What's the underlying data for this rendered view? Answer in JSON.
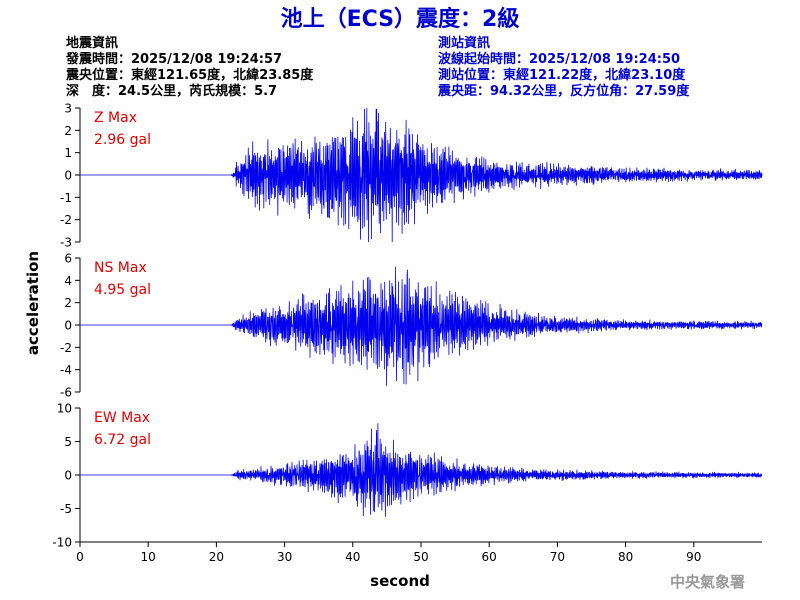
{
  "title": "池上（ECS）震度：2級",
  "event_info": {
    "heading": "地震資訊",
    "time": "發震時間：2025/12/08 19:24:57",
    "location": "震央位置：東經121.65度，北緯23.85度",
    "depth_mag": "深　度：24.5公里，芮氏規模：5.7"
  },
  "station_info": {
    "heading": "測站資訊",
    "wave_start": "波線起始時間：2025/12/08 19:24:50",
    "location": "測站位置：東經121.22度，北緯23.10度",
    "distance": "震央距：94.32公里，反方位角：27.59度"
  },
  "watermark": "中央氣象署",
  "colors": {
    "title": "#0000cc",
    "station_info": "#0000cc",
    "max_label": "#e00000",
    "trace": "#0000ee",
    "axis": "#000000"
  },
  "chart_data": [
    {
      "type": "line",
      "component": "Z",
      "max_label": "Z Max",
      "max_value": "2.96 gal",
      "ylim": [
        -3,
        3
      ],
      "yticks": [
        -3,
        -2,
        -1,
        0,
        1,
        2,
        3
      ],
      "xlim": [
        0,
        100
      ],
      "onset_s": 22.2,
      "peak_s": 43.5,
      "envelope": [
        [
          0,
          0
        ],
        [
          22.2,
          0
        ],
        [
          23,
          0.6
        ],
        [
          25,
          1.3
        ],
        [
          30,
          1.5
        ],
        [
          35,
          1.7
        ],
        [
          38,
          2.0
        ],
        [
          42,
          2.6
        ],
        [
          44,
          2.96
        ],
        [
          46,
          2.4
        ],
        [
          48,
          2.1
        ],
        [
          51,
          1.5
        ],
        [
          55,
          1.0
        ],
        [
          60,
          0.7
        ],
        [
          65,
          0.55
        ],
        [
          70,
          0.45
        ],
        [
          80,
          0.3
        ],
        [
          90,
          0.25
        ],
        [
          100,
          0.2
        ]
      ]
    },
    {
      "type": "line",
      "component": "NS",
      "max_label": "NS Max",
      "max_value": "4.95 gal",
      "ylim": [
        -6,
        6
      ],
      "yticks": [
        -6,
        -4,
        -2,
        0,
        2,
        4,
        6
      ],
      "xlim": [
        0,
        100
      ],
      "onset_s": 22.2,
      "peak_s": 48.0,
      "envelope": [
        [
          0,
          0
        ],
        [
          22.2,
          0
        ],
        [
          23,
          0.6
        ],
        [
          26,
          1.2
        ],
        [
          30,
          2.0
        ],
        [
          35,
          2.8
        ],
        [
          40,
          3.6
        ],
        [
          44,
          4.2
        ],
        [
          48,
          4.95
        ],
        [
          50,
          3.8
        ],
        [
          54,
          2.8
        ],
        [
          60,
          1.8
        ],
        [
          65,
          1.1
        ],
        [
          70,
          0.7
        ],
        [
          80,
          0.45
        ],
        [
          90,
          0.35
        ],
        [
          100,
          0.3
        ]
      ]
    },
    {
      "type": "line",
      "component": "EW",
      "max_label": "EW Max",
      "max_value": "6.72 gal",
      "ylim": [
        -10,
        10
      ],
      "yticks": [
        -10,
        -5,
        0,
        5,
        10
      ],
      "xlim": [
        0,
        100
      ],
      "onset_s": 22.2,
      "peak_s": 43.5,
      "envelope": [
        [
          0,
          0
        ],
        [
          22.2,
          0
        ],
        [
          23,
          0.6
        ],
        [
          26,
          1.0
        ],
        [
          30,
          1.5
        ],
        [
          35,
          2.5
        ],
        [
          40,
          4.0
        ],
        [
          43.5,
          6.72
        ],
        [
          46,
          4.5
        ],
        [
          50,
          3.0
        ],
        [
          55,
          2.0
        ],
        [
          60,
          1.3
        ],
        [
          65,
          0.9
        ],
        [
          70,
          0.7
        ],
        [
          80,
          0.5
        ],
        [
          90,
          0.4
        ],
        [
          100,
          0.35
        ]
      ]
    }
  ],
  "x_axis": {
    "label": "second",
    "ticks": [
      0,
      10,
      20,
      30,
      40,
      50,
      60,
      70,
      80,
      90
    ],
    "range": [
      0,
      100
    ]
  },
  "y_axis": {
    "label": "acceleration"
  }
}
